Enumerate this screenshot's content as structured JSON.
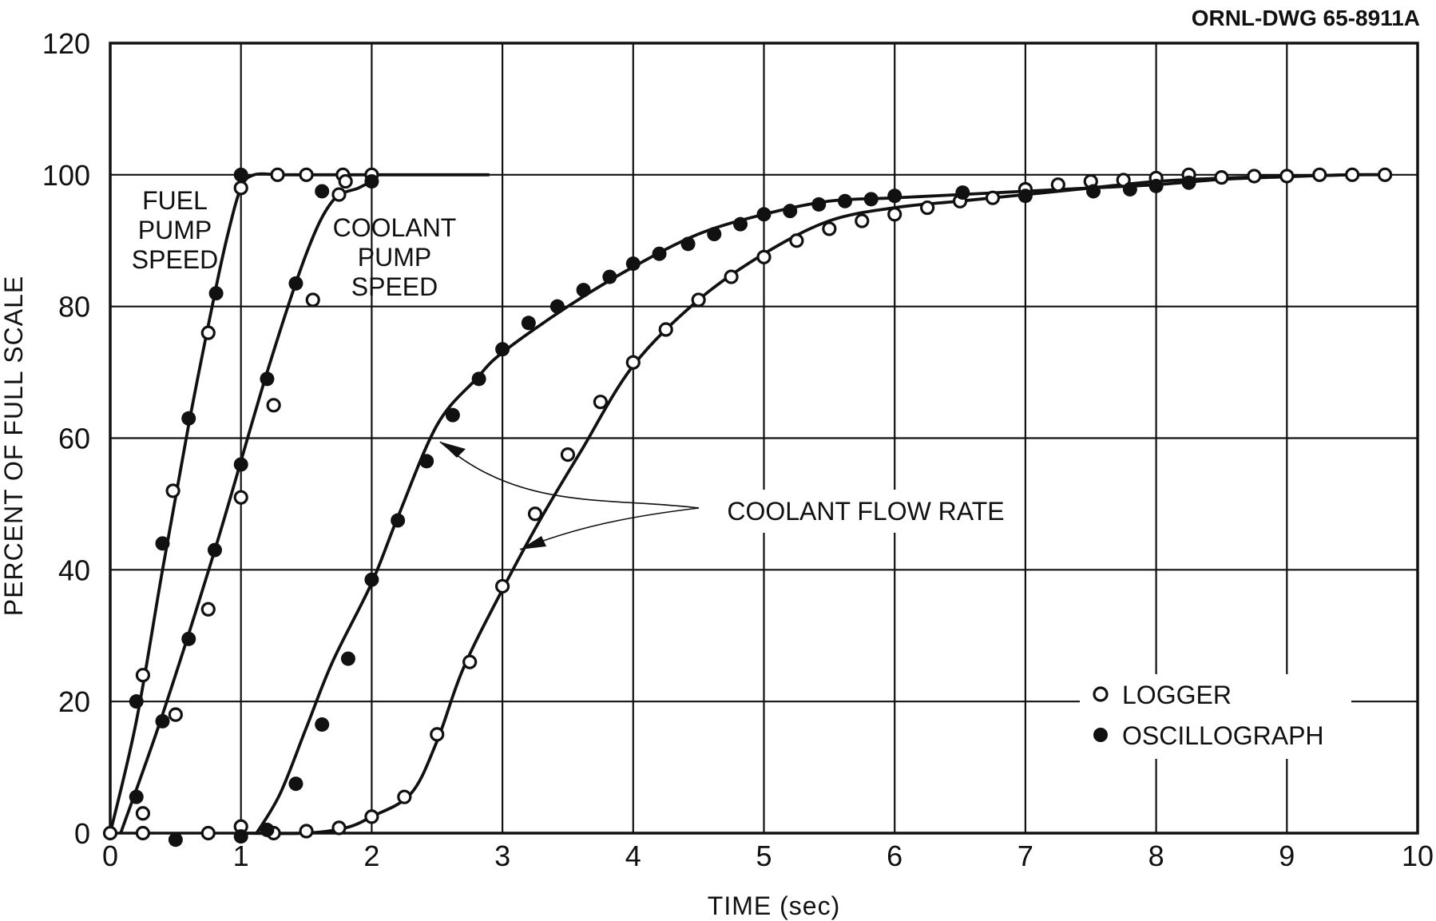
{
  "chart_data": {
    "type": "line",
    "drawing_id": "ORNL-DWG 65-8911A",
    "title": "",
    "xlabel": "TIME (sec)",
    "ylabel": "PERCENT OF FULL SCALE",
    "xlim": [
      0,
      10
    ],
    "ylim": [
      0,
      120
    ],
    "xticks": [
      0,
      1,
      2,
      3,
      4,
      5,
      6,
      7,
      8,
      9,
      10
    ],
    "yticks": [
      0,
      20,
      40,
      60,
      80,
      100,
      120
    ],
    "xtick_labels": [
      "0",
      "1",
      "2",
      "3",
      "4",
      "5",
      "6",
      "7",
      "8",
      "9",
      "10"
    ],
    "ytick_labels": [
      "0",
      "20",
      "40",
      "60",
      "80",
      "100",
      "120"
    ],
    "grid": true,
    "legend_position": "bottom-right",
    "legend": [
      {
        "marker": "open-circle",
        "label": "LOGGER"
      },
      {
        "marker": "filled-circle",
        "label": "OSCILLOGRAPH"
      }
    ],
    "annotations": {
      "fuel_pump_speed": [
        "FUEL",
        "PUMP",
        "SPEED"
      ],
      "coolant_pump_speed": [
        "COOLANT",
        "PUMP",
        "SPEED"
      ],
      "coolant_flow_rate": "COOLANT FLOW RATE"
    },
    "curves": [
      {
        "id": "fuel",
        "x": [
          0,
          0.2,
          0.4,
          0.6,
          0.8,
          0.9,
          1.0,
          1.1,
          1.3,
          1.5,
          1.7,
          2.0,
          2.9
        ],
        "y": [
          0,
          17,
          40,
          62,
          82,
          91,
          98,
          100,
          100,
          100,
          100,
          100,
          100
        ]
      },
      {
        "id": "coolant_pump",
        "x": [
          0.08,
          0.4,
          0.8,
          1.2,
          1.5,
          1.7,
          1.9,
          2.0
        ],
        "y": [
          0,
          18,
          43,
          70,
          88,
          96,
          98,
          99
        ]
      },
      {
        "id": "flow_osc",
        "x": [
          1.12,
          1.3,
          1.5,
          1.7,
          2.0,
          2.2,
          2.5,
          2.8,
          3.0,
          3.5,
          4.0,
          4.5,
          5.0,
          5.5,
          6.0,
          6.5,
          7.0,
          7.5,
          8.0,
          8.5,
          9.0,
          9.5,
          9.8
        ],
        "y": [
          0,
          6,
          16,
          26,
          38,
          48,
          62,
          69,
          73,
          80,
          86,
          91,
          94,
          96,
          96.5,
          97,
          97.5,
          98,
          98.5,
          99.3,
          99.7,
          100,
          100
        ]
      },
      {
        "id": "flow_log",
        "x": [
          1.0,
          1.5,
          1.8,
          2.0,
          2.3,
          2.5,
          2.7,
          3.0,
          3.3,
          3.6,
          4.0,
          4.5,
          5.0,
          5.5,
          6.0,
          6.5,
          7.0,
          7.5,
          8.0,
          8.5,
          9.0,
          9.5,
          9.8
        ],
        "y": [
          0,
          0,
          0.8,
          2.5,
          6,
          14,
          25,
          37,
          48,
          58,
          71,
          81,
          88,
          93,
          95,
          96,
          97,
          98,
          99,
          99.5,
          99.8,
          100,
          100
        ]
      }
    ],
    "series": [
      {
        "name": "LOGGER",
        "marker": "open",
        "x": [
          0,
          0.25,
          0.48,
          0.75,
          1.0,
          1.28,
          1.5,
          1.78,
          2.0,
          0.25,
          0.5,
          0.75,
          1.0,
          1.25,
          1.55,
          1.75,
          1.8,
          0.25,
          0.75,
          1.0,
          1.25,
          1.5,
          1.75,
          2.0,
          2.25,
          2.5,
          2.75,
          3.0,
          3.25,
          3.5,
          3.75,
          4.0,
          4.25,
          4.5,
          4.75,
          5.0,
          5.25,
          5.5,
          5.75,
          6.0,
          6.25,
          6.5,
          6.75,
          7.0,
          7.25,
          7.5,
          7.75,
          8.0,
          8.25,
          8.5,
          8.75,
          9.0,
          9.25,
          9.5,
          9.75
        ],
        "y": [
          0,
          24,
          52,
          76,
          98,
          100,
          100,
          100,
          100,
          3,
          18,
          34,
          51,
          65,
          81,
          97,
          99,
          0,
          0,
          1,
          0,
          0.3,
          0.8,
          2.5,
          5.5,
          15,
          26,
          37.5,
          48.5,
          57.5,
          65.5,
          71.5,
          76.5,
          81,
          84.5,
          87.5,
          90,
          91.8,
          93,
          94,
          95,
          96,
          96.5,
          97.8,
          98.5,
          99,
          99.2,
          99.5,
          100,
          99.6,
          99.8,
          99.8,
          100,
          100,
          100
        ]
      },
      {
        "name": "OSCILLOGRAPH",
        "marker": "filled",
        "x": [
          0.2,
          0.4,
          0.6,
          0.81,
          1.0,
          0.2,
          0.4,
          0.6,
          0.8,
          1.0,
          1.2,
          1.42,
          1.62,
          2.0,
          0.5,
          1.0,
          1.2,
          1.42,
          1.62,
          1.82,
          2.0,
          2.2,
          2.42,
          2.62,
          2.82,
          3.0,
          3.2,
          3.42,
          3.62,
          3.82,
          4.0,
          4.2,
          4.42,
          4.62,
          4.82,
          5.0,
          5.2,
          5.42,
          5.62,
          5.82,
          6.0,
          6.52,
          7.0,
          7.52,
          7.8,
          8.0,
          8.25
        ],
        "y": [
          20,
          44,
          63,
          82,
          100,
          5.5,
          17,
          29.5,
          43,
          56,
          69,
          83.5,
          97.5,
          99,
          -1,
          -0.5,
          0.5,
          7.5,
          16.5,
          26.5,
          38.5,
          47.5,
          56.5,
          63.5,
          69,
          73.5,
          77.5,
          80,
          82.5,
          84.5,
          86.5,
          88,
          89.5,
          91,
          92.5,
          94,
          94.5,
          95.5,
          96,
          96.3,
          96.8,
          97.3,
          96.8,
          97.5,
          97.8,
          98.3,
          98.8
        ]
      }
    ]
  }
}
